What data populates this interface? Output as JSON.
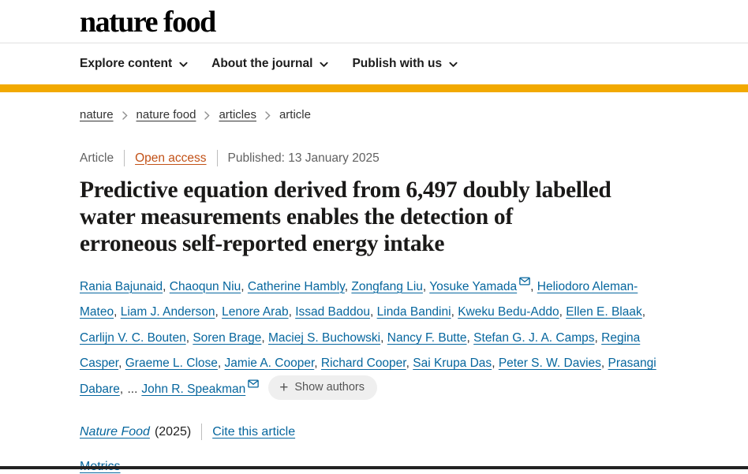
{
  "header": {
    "logo": "nature food"
  },
  "nav": {
    "items": [
      {
        "label": "Explore content"
      },
      {
        "label": "About the journal"
      },
      {
        "label": "Publish with us"
      }
    ]
  },
  "breadcrumb": {
    "items": [
      {
        "label": "nature",
        "link": true
      },
      {
        "label": "nature food",
        "link": true
      },
      {
        "label": "articles",
        "link": true
      },
      {
        "label": "article",
        "link": false
      }
    ]
  },
  "meta": {
    "type": "Article",
    "access": "Open access",
    "published": "Published: 13 January 2025"
  },
  "article": {
    "title": "Predictive equation derived from 6,497 doubly labelled water measurements enables the detection of erroneous self-reported energy intake",
    "title_lines": [
      "Predictive equation derived from 6,497 doubly labelled",
      "water measurements enables the detection of",
      "erroneous self-reported energy intake"
    ]
  },
  "authors": {
    "list": [
      {
        "name": "Rania Bajunaid"
      },
      {
        "name": "Chaoqun Niu"
      },
      {
        "name": "Catherine Hambly"
      },
      {
        "name": "Zongfang Liu"
      },
      {
        "name": "Yosuke Yamada",
        "email": true
      },
      {
        "name": "Heliodoro Aleman-Mateo"
      },
      {
        "name": "Liam J. Anderson"
      },
      {
        "name": "Lenore Arab"
      },
      {
        "name": "Issad Baddou"
      },
      {
        "name": "Linda Bandini"
      },
      {
        "name": "Kweku Bedu-Addo"
      },
      {
        "name": "Ellen E. Blaak"
      },
      {
        "name": "Carlijn V. C. Bouten"
      },
      {
        "name": "Soren Brage"
      },
      {
        "name": "Maciej S. Buchowski"
      },
      {
        "name": "Nancy F. Butte"
      },
      {
        "name": "Stefan G. J. A. Camps"
      },
      {
        "name": "Regina Casper"
      },
      {
        "name": "Graeme L. Close"
      },
      {
        "name": "Jamie A. Cooper"
      },
      {
        "name": "Richard Cooper"
      },
      {
        "name": "Sai Krupa Das"
      },
      {
        "name": "Peter S. W. Davies"
      },
      {
        "name": "Prasangi Dabare"
      }
    ],
    "separator": ", ",
    "truncation": "...",
    "last": {
      "name": "John R. Speakman",
      "email": true
    },
    "plus": "+",
    "show_authors_label": "Show authors"
  },
  "cite": {
    "journal": "Nature Food",
    "year": "(2025)",
    "cite_label": "Cite this article"
  },
  "links": {
    "metrics": "Metrics"
  },
  "colors": {
    "accent_yellow": "#f2a900",
    "link_blue": "#06669e",
    "open_access_orange": "#c25117",
    "text_dark": "#1a1918",
    "text_gray": "#616161",
    "button_bg": "#efefef"
  }
}
